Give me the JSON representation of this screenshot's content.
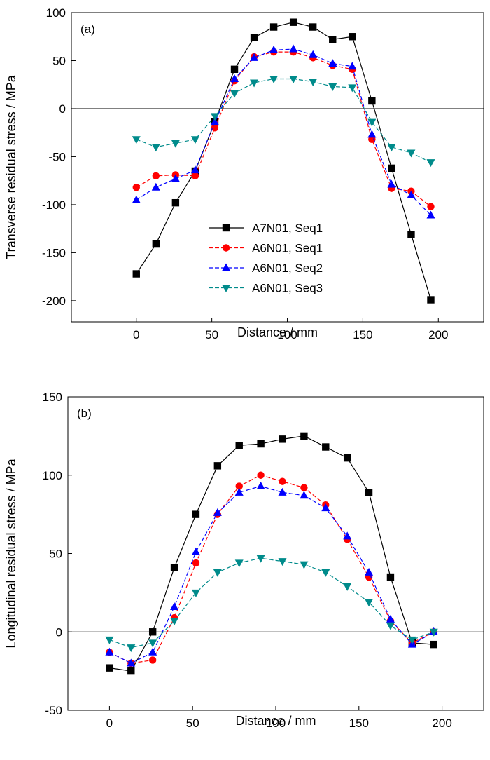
{
  "series_styles": [
    {
      "color": "#000000",
      "marker": "square",
      "dash": "6,3"
    },
    {
      "color": "#ff0000",
      "marker": "circle",
      "dash": "6,3"
    },
    {
      "color": "#0000ff",
      "marker": "triangle-up",
      "dash": "6,3"
    },
    {
      "color": "#008b8b",
      "marker": "triangle-down",
      "dash": "6,3"
    }
  ],
  "chart_data": [
    {
      "type": "line",
      "panel_label": "(a)",
      "xlabel": "Distance / mm",
      "ylabel": "Transverse residual stress / MPa",
      "xlim": [
        -43,
        230
      ],
      "ylim": [
        -222,
        100
      ],
      "xticks": [
        0,
        50,
        100,
        150,
        200
      ],
      "yticks": [
        -200,
        -150,
        -100,
        -50,
        0,
        50,
        100
      ],
      "zero_line": true,
      "legend": {
        "position": "lower-center",
        "entries": [
          "A7N01, Seq1",
          "A6N01, Seq1",
          "A6N01, Seq2",
          "A6N01, Seq3"
        ]
      },
      "x": [
        0,
        13,
        26,
        39,
        52,
        65,
        78,
        91,
        104,
        117,
        130,
        143,
        156,
        169,
        182,
        195
      ],
      "series": [
        {
          "name": "A7N01, Seq1",
          "values": [
            -172,
            -141,
            -98,
            -65,
            -14,
            41,
            74,
            85,
            90,
            85,
            72,
            75,
            8,
            -62,
            -131,
            -199
          ]
        },
        {
          "name": "A6N01, Seq1",
          "values": [
            -82,
            -70,
            -69,
            -70,
            -20,
            29,
            54,
            59,
            59,
            53,
            45,
            41,
            -32,
            -83,
            -86,
            -102
          ]
        },
        {
          "name": "A6N01, Seq2",
          "values": [
            -95,
            -82,
            -73,
            -64,
            -14,
            31,
            53,
            61,
            62,
            56,
            47,
            44,
            -27,
            -79,
            -90,
            -111
          ]
        },
        {
          "name": "A6N01, Seq3",
          "values": [
            -32,
            -40,
            -36,
            -32,
            -8,
            16,
            27,
            31,
            31,
            28,
            23,
            22,
            -14,
            -40,
            -46,
            -56
          ]
        }
      ]
    },
    {
      "type": "line",
      "panel_label": "(b)",
      "xlabel": "Distance / mm",
      "ylabel": "Longitudinal residual stress / MPa",
      "xlim": [
        -25,
        225
      ],
      "ylim": [
        -50,
        150
      ],
      "xticks": [
        0,
        50,
        100,
        150,
        200
      ],
      "yticks": [
        -50,
        0,
        50,
        100,
        150
      ],
      "zero_line": true,
      "x": [
        0,
        13,
        26,
        39,
        52,
        65,
        78,
        91,
        104,
        117,
        130,
        143,
        156,
        169,
        182,
        195
      ],
      "series": [
        {
          "name": "A7N01, Seq1",
          "values": [
            -23,
            -25,
            0,
            41,
            75,
            106,
            119,
            120,
            123,
            125,
            118,
            111,
            89,
            35,
            -7,
            -8
          ]
        },
        {
          "name": "A6N01, Seq1",
          "values": [
            -13,
            -20,
            -18,
            9,
            44,
            75,
            93,
            100,
            96,
            92,
            81,
            59,
            35,
            7,
            -7,
            0
          ]
        },
        {
          "name": "A6N01, Seq2",
          "values": [
            -13,
            -20,
            -13,
            16,
            51,
            76,
            89,
            93,
            89,
            87,
            79,
            61,
            38,
            8,
            -8,
            0
          ]
        },
        {
          "name": "A6N01, Seq3",
          "values": [
            -5,
            -10,
            -7,
            7,
            25,
            38,
            44,
            47,
            45,
            43,
            38,
            29,
            19,
            4,
            -5,
            0
          ]
        }
      ]
    }
  ]
}
